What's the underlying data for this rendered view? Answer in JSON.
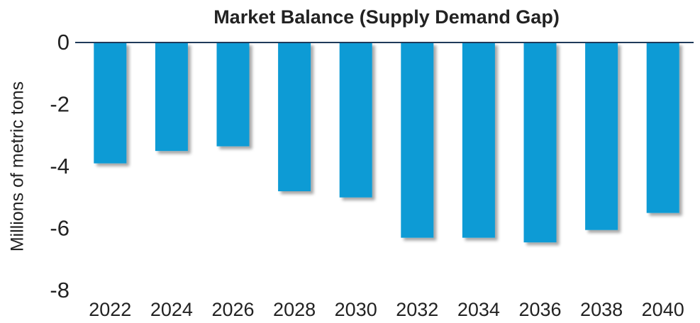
{
  "chart_data": {
    "type": "bar",
    "title": "Market Balance (Supply Demand Gap)",
    "ylabel": "Millions of metric tons",
    "categories": [
      "2022",
      "2024",
      "2026",
      "2028",
      "2030",
      "2032",
      "2034",
      "2036",
      "2038",
      "2040"
    ],
    "values": [
      -3.9,
      -3.5,
      -3.35,
      -4.8,
      -5.0,
      -6.3,
      -6.3,
      -6.45,
      -6.05,
      -5.5
    ],
    "color": "#119bd5",
    "ylim": [
      -8,
      0
    ],
    "yticks": [
      -8,
      -6,
      -4,
      -2,
      0
    ],
    "grid": false
  }
}
